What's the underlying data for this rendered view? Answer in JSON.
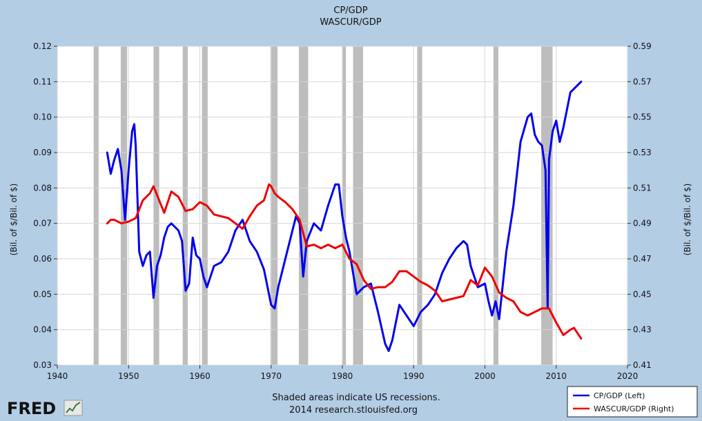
{
  "titles": [
    "CP/GDP",
    "WASCUR/GDP"
  ],
  "footer": {
    "line1": "Shaded areas indicate US recessions.",
    "line2": "2014 research.stlouisfed.org"
  },
  "logo": {
    "text": "FRED",
    "icon": "chart-sparkline-icon"
  },
  "chart_data": {
    "type": "line",
    "title": "CP/GDP",
    "subtitle": "WASCUR/GDP",
    "xlim": [
      1940,
      2020
    ],
    "x_ticks": [
      "1940",
      "1950",
      "1960",
      "1970",
      "1980",
      "1990",
      "2000",
      "2010",
      "2020"
    ],
    "left_axis": {
      "label": "(Bil. of $/Bil. of $)",
      "ylim": [
        0.03,
        0.12
      ],
      "ticks": [
        "0.03",
        "0.04",
        "0.05",
        "0.06",
        "0.07",
        "0.08",
        "0.09",
        "0.10",
        "0.11",
        "0.12"
      ]
    },
    "right_axis": {
      "label": "(Bil. of $/Bil. of $)",
      "ylim": [
        0.41,
        0.59
      ],
      "ticks": [
        "0.41",
        "0.43",
        "0.45",
        "0.47",
        "0.49",
        "0.51",
        "0.53",
        "0.55",
        "0.57",
        "0.59"
      ]
    },
    "grid": true,
    "legend_position": "bottom-right",
    "recessions": [
      [
        1945.1,
        1945.8
      ],
      [
        1948.9,
        1949.8
      ],
      [
        1953.5,
        1954.3
      ],
      [
        1957.6,
        1958.3
      ],
      [
        1960.3,
        1961.1
      ],
      [
        1969.9,
        1970.9
      ],
      [
        1973.9,
        1975.2
      ],
      [
        1980.0,
        1980.5
      ],
      [
        1981.5,
        1982.9
      ],
      [
        1990.5,
        1991.2
      ],
      [
        2001.2,
        2001.9
      ],
      [
        2007.9,
        2009.5
      ]
    ],
    "series": [
      {
        "name": "CP/GDP (Left)",
        "axis": "left",
        "color": "#0000ee",
        "x": [
          1947,
          1947.5,
          1948,
          1948.5,
          1949,
          1949.5,
          1950,
          1950.5,
          1950.8,
          1951,
          1951.5,
          1952,
          1952.5,
          1953,
          1953.5,
          1954,
          1954.5,
          1955,
          1955.5,
          1956,
          1956.5,
          1957,
          1957.5,
          1958,
          1958.5,
          1959,
          1959.5,
          1960,
          1960.5,
          1961,
          1961.5,
          1962,
          1963,
          1964,
          1965,
          1966,
          1967,
          1968,
          1969,
          1970,
          1970.5,
          1971,
          1972,
          1973,
          1973.5,
          1974,
          1974.5,
          1975,
          1976,
          1977,
          1978,
          1979,
          1979.5,
          1980,
          1980.5,
          1981,
          1982,
          1983,
          1984,
          1985,
          1986,
          1986.5,
          1987,
          1988,
          1989,
          1990,
          1991,
          1992,
          1993,
          1994,
          1995,
          1996,
          1997,
          1997.5,
          1998,
          1999,
          2000,
          2000.5,
          2001,
          2001.5,
          2002,
          2003,
          2004,
          2005,
          2006,
          2006.5,
          2007,
          2007.5,
          2008,
          2008.5,
          2008.8,
          2009,
          2009.5,
          2010,
          2010.5,
          2011,
          2012,
          2013,
          2013.5
        ],
        "values": [
          0.09,
          0.084,
          0.088,
          0.091,
          0.085,
          0.071,
          0.085,
          0.096,
          0.098,
          0.092,
          0.062,
          0.058,
          0.061,
          0.062,
          0.049,
          0.058,
          0.061,
          0.066,
          0.069,
          0.07,
          0.069,
          0.068,
          0.065,
          0.051,
          0.053,
          0.066,
          0.061,
          0.06,
          0.055,
          0.052,
          0.055,
          0.058,
          0.059,
          0.062,
          0.068,
          0.071,
          0.065,
          0.062,
          0.057,
          0.047,
          0.046,
          0.052,
          0.06,
          0.068,
          0.072,
          0.07,
          0.055,
          0.065,
          0.07,
          0.068,
          0.075,
          0.081,
          0.081,
          0.072,
          0.066,
          0.062,
          0.05,
          0.052,
          0.053,
          0.045,
          0.036,
          0.034,
          0.037,
          0.047,
          0.044,
          0.041,
          0.045,
          0.047,
          0.05,
          0.056,
          0.06,
          0.063,
          0.065,
          0.064,
          0.058,
          0.052,
          0.053,
          0.048,
          0.044,
          0.048,
          0.043,
          0.062,
          0.075,
          0.093,
          0.1,
          0.101,
          0.095,
          0.093,
          0.092,
          0.085,
          0.046,
          0.088,
          0.096,
          0.099,
          0.093,
          0.097,
          0.107,
          0.109,
          0.11
        ]
      },
      {
        "name": "WASCUR/GDP (Right)",
        "axis": "right",
        "color": "#ee0000",
        "x": [
          1947,
          1947.5,
          1948,
          1949,
          1950,
          1951,
          1952,
          1953,
          1953.5,
          1954,
          1955,
          1956,
          1957,
          1958,
          1959,
          1960,
          1961,
          1962,
          1963,
          1964,
          1965,
          1966,
          1967,
          1968,
          1969,
          1969.7,
          1970,
          1970.5,
          1971,
          1972,
          1973,
          1974,
          1975,
          1976,
          1977,
          1978,
          1979,
          1980,
          1981,
          1982,
          1983,
          1984,
          1985,
          1986,
          1987,
          1988,
          1989,
          1990,
          1991,
          1992,
          1993,
          1994,
          1995,
          1996,
          1997,
          1998,
          1999,
          2000,
          2001,
          2002,
          2003,
          2004,
          2005,
          2006,
          2007,
          2008,
          2009,
          2010,
          2011,
          2012,
          2012.5,
          2013,
          2013.5
        ],
        "values": [
          0.49,
          0.492,
          0.492,
          0.49,
          0.491,
          0.493,
          0.503,
          0.507,
          0.511,
          0.506,
          0.496,
          0.508,
          0.505,
          0.497,
          0.498,
          0.502,
          0.5,
          0.495,
          0.494,
          0.493,
          0.49,
          0.487,
          0.494,
          0.5,
          0.503,
          0.512,
          0.511,
          0.507,
          0.505,
          0.502,
          0.498,
          0.492,
          0.477,
          0.478,
          0.476,
          0.478,
          0.476,
          0.478,
          0.47,
          0.467,
          0.458,
          0.453,
          0.454,
          0.454,
          0.457,
          0.463,
          0.463,
          0.46,
          0.457,
          0.455,
          0.452,
          0.446,
          0.447,
          0.448,
          0.449,
          0.458,
          0.455,
          0.465,
          0.46,
          0.451,
          0.448,
          0.446,
          0.44,
          0.438,
          0.44,
          0.442,
          0.442,
          0.434,
          0.427,
          0.43,
          0.431,
          0.428,
          0.425
        ]
      }
    ]
  }
}
